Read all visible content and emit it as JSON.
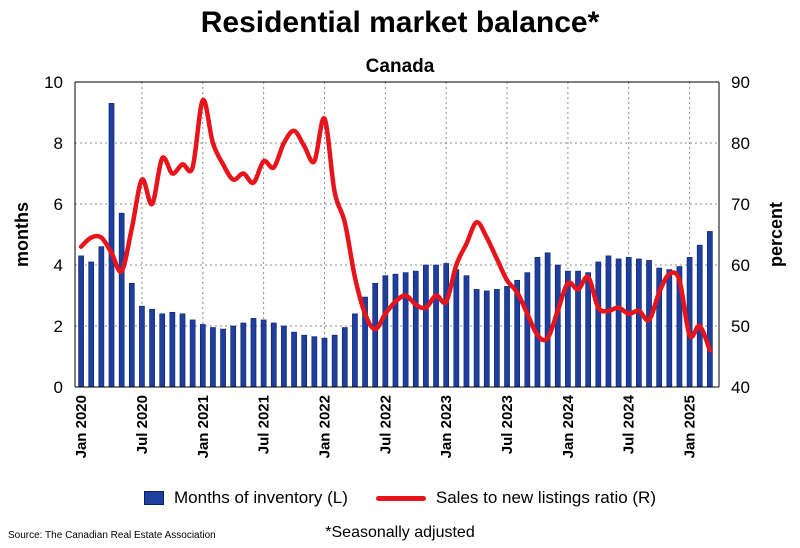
{
  "title": "Residential market balance*",
  "subtitle": "Canada",
  "source": "Source: The Canadian Real Estate Association",
  "footnote": "*Seasonally adjusted",
  "colors": {
    "bar": "#1f3f9e",
    "bar_edge": "#0a1f6a",
    "line": "#e8141b",
    "grid": "#8c8c8c"
  },
  "chart_data": {
    "type": "bar+line",
    "title": "Residential market balance*",
    "subtitle": "Canada",
    "left_ylabel": "months",
    "right_ylabel": "percent",
    "left_ylim": [
      0,
      10
    ],
    "left_yticks": [
      "0",
      "2",
      "4",
      "6",
      "8",
      "10"
    ],
    "right_ylim": [
      40,
      90
    ],
    "right_yticks": [
      "40",
      "50",
      "60",
      "70",
      "80",
      "90"
    ],
    "x_tick_labels": [
      "Jan 2020",
      "Jul 2020",
      "Jan 2021",
      "Jul 2021",
      "Jan 2022",
      "Jul 2022",
      "Jan 2023",
      "Jul 2023",
      "Jan 2024",
      "Jul 2024",
      "Jan 2025"
    ],
    "x_tick_every": 6,
    "gridlines": "dotted",
    "series": [
      {
        "name": "Months of inventory (L)",
        "type": "bar",
        "axis": "left",
        "values": [
          4.3,
          4.1,
          4.6,
          9.3,
          5.7,
          3.4,
          2.65,
          2.55,
          2.4,
          2.45,
          2.4,
          2.2,
          2.05,
          1.95,
          1.9,
          2.0,
          2.1,
          2.25,
          2.2,
          2.1,
          2.0,
          1.8,
          1.7,
          1.65,
          1.6,
          1.7,
          1.95,
          2.4,
          2.95,
          3.4,
          3.65,
          3.7,
          3.75,
          3.8,
          4.0,
          4.0,
          4.05,
          3.85,
          3.65,
          3.2,
          3.15,
          3.2,
          3.3,
          3.5,
          3.75,
          4.25,
          4.4,
          4.0,
          3.8,
          3.8,
          3.75,
          4.1,
          4.3,
          4.2,
          4.25,
          4.2,
          4.15,
          3.9,
          3.85,
          3.95,
          4.25,
          4.65,
          5.1
        ]
      },
      {
        "name": "Sales to new listings ratio (R)",
        "type": "line",
        "axis": "right",
        "values": [
          63,
          64.5,
          64.5,
          62,
          59,
          66,
          74,
          70,
          77.5,
          75,
          76.5,
          76,
          87,
          80,
          76.5,
          74,
          75,
          73.5,
          77,
          76,
          80,
          82,
          79.5,
          77,
          84,
          72,
          67,
          58,
          52,
          49.5,
          52,
          54,
          55,
          53.5,
          53,
          55,
          54,
          60,
          63.5,
          67,
          64.5,
          61,
          57.5,
          55.5,
          52,
          48.5,
          48,
          52.5,
          57,
          56,
          58,
          53,
          52.5,
          53,
          52,
          52.5,
          51,
          55.5,
          58.5,
          57.5,
          48.5,
          50,
          46
        ]
      }
    ]
  }
}
